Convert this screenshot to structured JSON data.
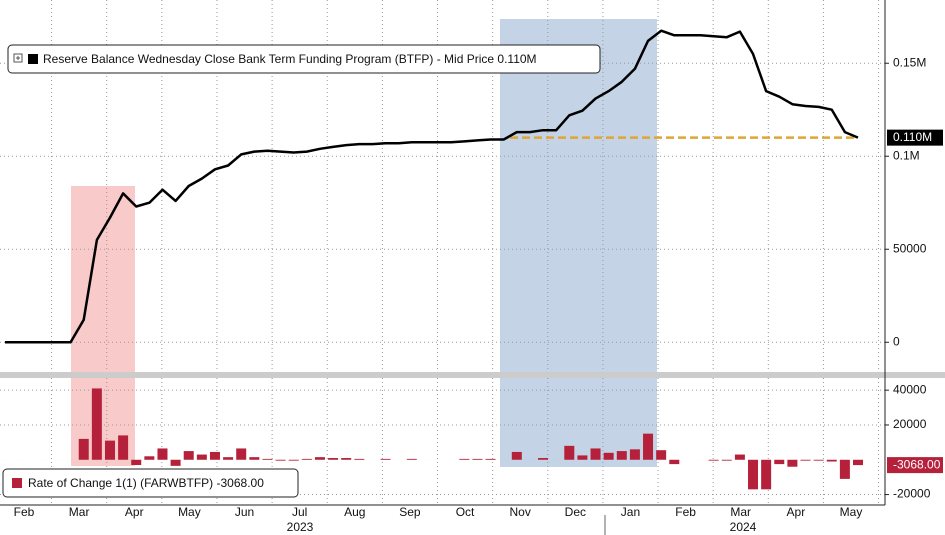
{
  "chart_data": [
    {
      "type": "line",
      "series": [
        {
          "name": "Reserve Balance Wednesday Close Bank Term Funding Program (BTFP) - Mid Price 0.110M",
          "color": "#000000",
          "values": [
            0,
            0,
            0,
            0,
            0,
            0,
            12000,
            55000,
            67000,
            80000,
            73000,
            75000,
            82000,
            76000,
            84000,
            88000,
            93000,
            95000,
            101000,
            102500,
            103000,
            102500,
            102000,
            102500,
            104000,
            105000,
            106000,
            106500,
            106500,
            107000,
            107000,
            107500,
            107500,
            107500,
            107500,
            108000,
            108500,
            109000,
            109000,
            113000,
            113000,
            114000,
            114000,
            122000,
            124500,
            131000,
            135000,
            140000,
            147000,
            162000,
            167500,
            165000,
            165000,
            165000,
            164500,
            164000,
            167000,
            155000,
            135000,
            132000,
            128000,
            127000,
            126500,
            125000,
            113000,
            110000
          ],
          "value_labels": [
            null,
            null,
            null,
            null,
            null,
            null,
            null,
            null,
            null,
            null,
            null,
            null,
            null,
            null,
            null,
            null,
            null,
            null,
            null,
            null,
            null,
            null,
            null,
            null,
            null,
            null,
            null,
            null,
            null,
            null,
            null,
            null,
            null,
            null,
            null,
            null,
            null,
            null,
            null,
            null,
            null,
            null,
            null,
            null,
            null,
            null,
            null,
            null,
            null,
            null,
            null,
            null,
            null,
            null,
            null,
            null,
            null,
            null,
            null,
            null,
            null,
            null,
            null,
            null,
            null,
            "0.110M"
          ]
        }
      ],
      "reference_line": {
        "value": 110000,
        "color": "#e0a534"
      },
      "ylim": [
        -16000,
        184000
      ],
      "yticks": [
        0,
        50000,
        {
          "value": 100000,
          "label": "0.1M"
        },
        {
          "value": 150000,
          "label": "0.15M"
        }
      ],
      "grid": true
    },
    {
      "type": "bar",
      "series": [
        {
          "name": "Rate of Change 1(1) (FARWBTFP) -3068.00",
          "color": "#b5213a",
          "values": [
            0,
            0,
            0,
            0,
            0,
            0,
            12000,
            41000,
            11000,
            14000,
            -3000,
            2000,
            6500,
            -3500,
            5000,
            3000,
            4500,
            1500,
            6500,
            1500,
            500,
            -500,
            -500,
            500,
            1500,
            1000,
            1000,
            500,
            0,
            500,
            0,
            500,
            0,
            0,
            0,
            500,
            500,
            500,
            0,
            4500,
            0,
            1000,
            0,
            8000,
            2500,
            6500,
            4000,
            5000,
            6000,
            15000,
            5500,
            -2500,
            0,
            0,
            -500,
            -500,
            3000,
            -17000,
            -17000,
            -2500,
            -4000,
            -500,
            -500,
            -1000,
            -11000,
            -3068
          ],
          "value_labels": [
            null,
            null,
            null,
            null,
            null,
            null,
            null,
            null,
            null,
            null,
            null,
            null,
            null,
            null,
            null,
            null,
            null,
            null,
            null,
            null,
            null,
            null,
            null,
            null,
            null,
            null,
            null,
            null,
            null,
            null,
            null,
            null,
            null,
            null,
            null,
            null,
            null,
            null,
            null,
            null,
            null,
            null,
            null,
            null,
            null,
            null,
            null,
            null,
            null,
            null,
            null,
            null,
            null,
            null,
            null,
            null,
            null,
            null,
            null,
            null,
            null,
            null,
            null,
            null,
            null,
            "-3068.00"
          ]
        }
      ],
      "ylim": [
        -26000,
        47000
      ],
      "yticks": [
        -20000,
        20000,
        40000
      ],
      "grid": true
    }
  ],
  "x_axis": {
    "months": [
      "Feb",
      "Mar",
      "Apr",
      "May",
      "Jun",
      "Jul",
      "Aug",
      "Sep",
      "Oct",
      "Nov",
      "Dec",
      "Jan",
      "Feb",
      "Mar",
      "Apr",
      "May"
    ],
    "years": [
      "2023",
      "2024"
    ]
  }
}
